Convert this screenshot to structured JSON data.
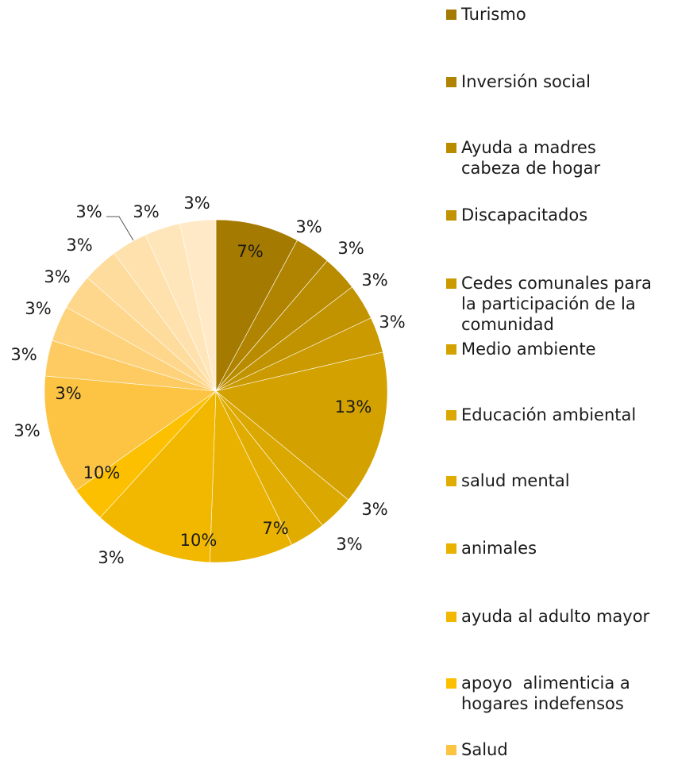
{
  "chart_data": {
    "type": "pie",
    "title": "",
    "legend_position": "right",
    "slices": [
      {
        "label": "Turismo",
        "value": 7,
        "data_label": "7%",
        "color": "#A57A00"
      },
      {
        "label": "Inversión social",
        "value": 3,
        "data_label": "3%",
        "color": "#B08400"
      },
      {
        "label": "Ayuda a madres\ncabeza de hogar",
        "value": 3,
        "data_label": "3%",
        "color": "#B98C00"
      },
      {
        "label": "Discapacitados",
        "value": 3,
        "data_label": "3%",
        "color": "#C29300"
      },
      {
        "label": "Cedes comunales para\nla participación de la\ncomunidad",
        "value": 3,
        "data_label": "3%",
        "color": "#CA9A00"
      },
      {
        "label": "Medio ambiente",
        "value": 13,
        "data_label": "13%",
        "color": "#D4A200"
      },
      {
        "label": "Educación ambiental",
        "value": 3,
        "data_label": "3%",
        "color": "#DBA800"
      },
      {
        "label": "salud mental",
        "value": 3,
        "data_label": "3%",
        "color": "#E1AC00"
      },
      {
        "label": "animales",
        "value": 7,
        "data_label": "7%",
        "color": "#EAB200"
      },
      {
        "label": "ayuda al adulto mayor",
        "value": 10,
        "data_label": "10%",
        "color": "#F2B800"
      },
      {
        "label": "apoyo  alimenticia a\nhogares indefensos",
        "value": 3,
        "data_label": "3%",
        "color": "#FCC000"
      },
      {
        "label": "Salud",
        "value": 10,
        "data_label": "10%",
        "color": "#FDC343"
      },
      {
        "label": "",
        "value": 3,
        "data_label": "3%",
        "color": "#FDCB62"
      },
      {
        "label": "",
        "value": 3,
        "data_label": "3%",
        "color": "#FED27A"
      },
      {
        "label": "",
        "value": 3,
        "data_label": "3%",
        "color": "#FED78D"
      },
      {
        "label": "",
        "value": 3,
        "data_label": "3%",
        "color": "#FEDC9D"
      },
      {
        "label": "",
        "value": 3,
        "data_label": "3%",
        "color": "#FEE1AD"
      },
      {
        "label": "",
        "value": 3,
        "data_label": "3%",
        "color": "#FFE5BA"
      },
      {
        "label": "",
        "value": 3,
        "data_label": "3%",
        "color": "#FFE9C6"
      }
    ]
  }
}
